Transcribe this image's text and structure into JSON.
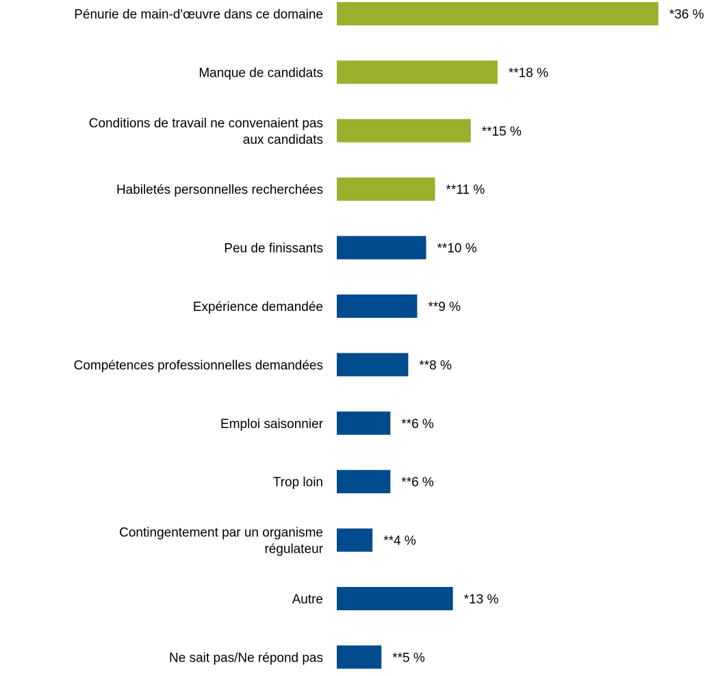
{
  "chart_data": {
    "type": "bar",
    "orientation": "horizontal",
    "categories": [
      [
        "Pénurie de main-d'œuvre dans ce domaine"
      ],
      [
        "Manque de candidats"
      ],
      [
        "Conditions de travail ne convenaient pas",
        "aux candidats"
      ],
      [
        "Habiletés personnelles recherchées"
      ],
      [
        "Peu de finissants"
      ],
      [
        "Expérience demandée"
      ],
      [
        "Compétences professionnelles demandées"
      ],
      [
        "Emploi saisonnier"
      ],
      [
        "Trop loin"
      ],
      [
        "Contingentement par un organisme",
        "régulateur"
      ],
      [
        "Autre"
      ],
      [
        "Ne sait pas/Ne répond pas"
      ]
    ],
    "values": [
      36,
      18,
      15,
      11,
      10,
      9,
      8,
      6,
      6,
      4,
      13,
      5
    ],
    "value_labels": [
      "*36 %",
      "**18 %",
      "**15 %",
      "**11 %",
      "**10 %",
      "**9 %",
      "**8 %",
      "**6 %",
      "**6 %",
      "**4 %",
      "*13 %",
      "**5 %"
    ],
    "highlight_count": 4,
    "colors": {
      "highlight": "#9aaf2b",
      "default": "#004b8d"
    },
    "grid": false,
    "legend": "none"
  }
}
